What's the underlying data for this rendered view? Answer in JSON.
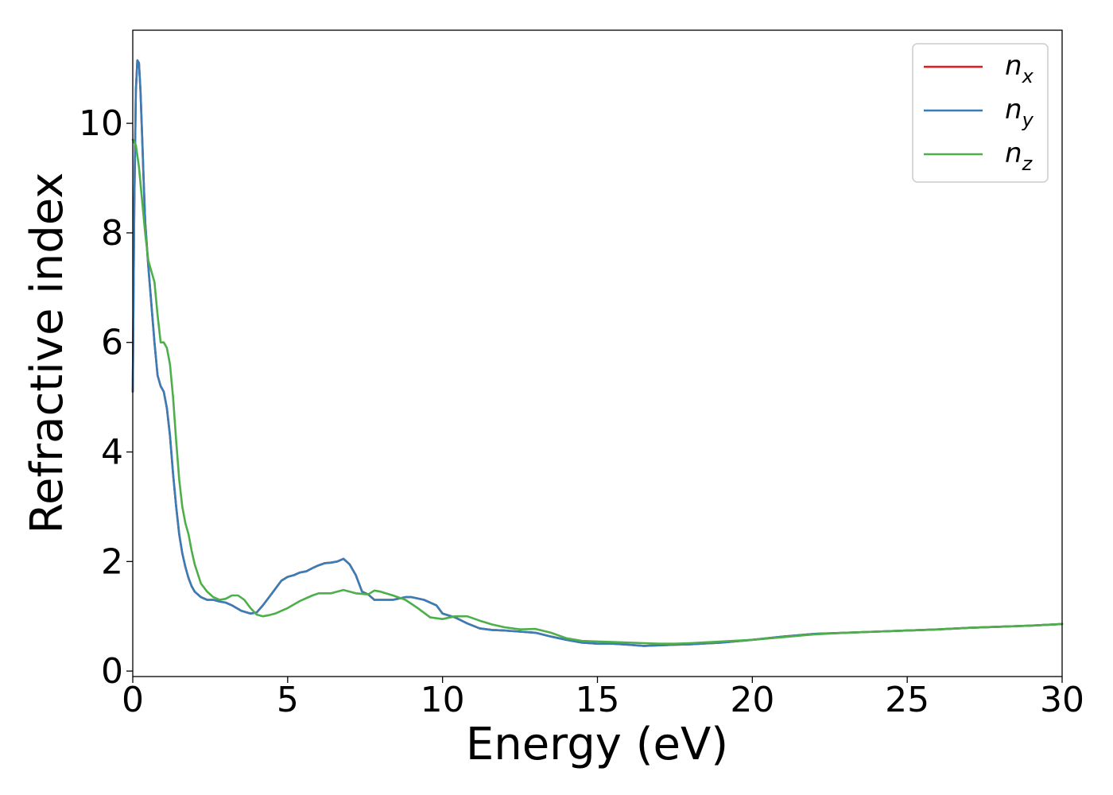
{
  "chart_data": {
    "type": "line",
    "xlabel": "Energy (eV)",
    "ylabel": "Refractive index",
    "xlim": [
      0,
      30
    ],
    "ylim": [
      -0.1,
      11.7
    ],
    "xticks": [
      "0",
      "5",
      "10",
      "15",
      "20",
      "25",
      "30"
    ],
    "yticks": [
      "0",
      "2",
      "4",
      "6",
      "8",
      "10"
    ],
    "grid": false,
    "legend_position": "top-right",
    "series": [
      {
        "name": "n_x",
        "label_main": "n",
        "label_sub": "x",
        "color": "#e41a1c",
        "x": [
          0,
          0.05,
          0.1,
          0.15,
          0.2,
          0.25,
          0.3,
          0.35,
          0.4,
          0.5,
          0.6,
          0.7,
          0.8,
          0.9,
          1.0,
          1.1,
          1.2,
          1.3,
          1.4,
          1.5,
          1.6,
          1.7,
          1.8,
          1.9,
          2.0,
          2.2,
          2.4,
          2.6,
          2.8,
          3.0,
          3.2,
          3.5,
          3.8,
          4.0,
          4.2,
          4.4,
          4.6,
          4.8,
          5.0,
          5.2,
          5.4,
          5.6,
          5.8,
          6.0,
          6.2,
          6.4,
          6.6,
          6.8,
          7.0,
          7.2,
          7.4,
          7.6,
          7.8,
          8.0,
          8.4,
          8.8,
          9.0,
          9.4,
          9.8,
          10.0,
          10.4,
          10.8,
          11.2,
          11.6,
          12.0,
          12.5,
          13.0,
          13.5,
          14.0,
          14.5,
          15.0,
          15.5,
          16.0,
          16.5,
          17.0,
          17.5,
          18.0,
          19.0,
          20.0,
          21.0,
          22.0,
          23.0,
          24.0,
          25.0,
          26.0,
          27.0,
          28.0,
          29.0,
          30.0
        ],
        "y": [
          5.1,
          8.5,
          10.6,
          11.15,
          11.1,
          10.6,
          9.8,
          9.0,
          8.2,
          7.4,
          6.7,
          6.0,
          5.4,
          5.2,
          5.1,
          4.8,
          4.3,
          3.6,
          3.0,
          2.5,
          2.15,
          1.9,
          1.7,
          1.55,
          1.45,
          1.35,
          1.3,
          1.3,
          1.27,
          1.25,
          1.2,
          1.1,
          1.05,
          1.07,
          1.2,
          1.35,
          1.5,
          1.65,
          1.72,
          1.75,
          1.8,
          1.82,
          1.88,
          1.93,
          1.97,
          1.98,
          2.0,
          2.05,
          1.95,
          1.75,
          1.45,
          1.4,
          1.3,
          1.3,
          1.3,
          1.35,
          1.35,
          1.3,
          1.2,
          1.05,
          0.98,
          0.87,
          0.78,
          0.75,
          0.74,
          0.72,
          0.7,
          0.63,
          0.57,
          0.52,
          0.5,
          0.5,
          0.48,
          0.46,
          0.47,
          0.48,
          0.49,
          0.52,
          0.57,
          0.63,
          0.68,
          0.7,
          0.72,
          0.74,
          0.76,
          0.79,
          0.81,
          0.83,
          0.86
        ]
      },
      {
        "name": "n_y",
        "label_main": "n",
        "label_sub": "y",
        "color": "#377eb8",
        "x": [
          0,
          0.05,
          0.1,
          0.15,
          0.2,
          0.25,
          0.3,
          0.35,
          0.4,
          0.5,
          0.6,
          0.7,
          0.8,
          0.9,
          1.0,
          1.1,
          1.2,
          1.3,
          1.4,
          1.5,
          1.6,
          1.7,
          1.8,
          1.9,
          2.0,
          2.2,
          2.4,
          2.6,
          2.8,
          3.0,
          3.2,
          3.5,
          3.8,
          4.0,
          4.2,
          4.4,
          4.6,
          4.8,
          5.0,
          5.2,
          5.4,
          5.6,
          5.8,
          6.0,
          6.2,
          6.4,
          6.6,
          6.8,
          7.0,
          7.2,
          7.4,
          7.6,
          7.8,
          8.0,
          8.4,
          8.8,
          9.0,
          9.4,
          9.8,
          10.0,
          10.4,
          10.8,
          11.2,
          11.6,
          12.0,
          12.5,
          13.0,
          13.5,
          14.0,
          14.5,
          15.0,
          15.5,
          16.0,
          16.5,
          17.0,
          17.5,
          18.0,
          19.0,
          20.0,
          21.0,
          22.0,
          23.0,
          24.0,
          25.0,
          26.0,
          27.0,
          28.0,
          29.0,
          30.0
        ],
        "y": [
          5.1,
          8.5,
          10.6,
          11.15,
          11.1,
          10.6,
          9.8,
          9.0,
          8.2,
          7.4,
          6.7,
          6.0,
          5.4,
          5.2,
          5.1,
          4.8,
          4.3,
          3.6,
          3.0,
          2.5,
          2.15,
          1.9,
          1.7,
          1.55,
          1.45,
          1.35,
          1.3,
          1.3,
          1.27,
          1.25,
          1.2,
          1.1,
          1.05,
          1.07,
          1.2,
          1.35,
          1.5,
          1.65,
          1.72,
          1.75,
          1.8,
          1.82,
          1.88,
          1.93,
          1.97,
          1.98,
          2.0,
          2.05,
          1.95,
          1.75,
          1.45,
          1.4,
          1.3,
          1.3,
          1.3,
          1.35,
          1.35,
          1.3,
          1.2,
          1.05,
          0.98,
          0.87,
          0.78,
          0.75,
          0.74,
          0.72,
          0.7,
          0.63,
          0.57,
          0.52,
          0.5,
          0.5,
          0.48,
          0.46,
          0.47,
          0.48,
          0.49,
          0.52,
          0.57,
          0.63,
          0.68,
          0.7,
          0.72,
          0.74,
          0.76,
          0.79,
          0.81,
          0.83,
          0.86
        ]
      },
      {
        "name": "n_z",
        "label_main": "n",
        "label_sub": "z",
        "color": "#4daf4a",
        "x": [
          0,
          0.1,
          0.2,
          0.3,
          0.4,
          0.5,
          0.6,
          0.7,
          0.8,
          0.9,
          1.0,
          1.1,
          1.2,
          1.3,
          1.4,
          1.5,
          1.6,
          1.7,
          1.8,
          1.9,
          2.0,
          2.2,
          2.4,
          2.6,
          2.8,
          3.0,
          3.2,
          3.4,
          3.6,
          3.8,
          4.0,
          4.2,
          4.4,
          4.6,
          4.8,
          5.0,
          5.4,
          5.8,
          6.0,
          6.4,
          6.8,
          7.2,
          7.6,
          7.8,
          8.0,
          8.4,
          8.8,
          9.2,
          9.6,
          10.0,
          10.4,
          10.8,
          11.2,
          11.6,
          12.0,
          12.5,
          13.0,
          13.5,
          14.0,
          14.5,
          15.0,
          15.5,
          16.0,
          16.5,
          17.0,
          17.5,
          18.0,
          19.0,
          20.0,
          21.0,
          22.0,
          23.0,
          24.0,
          25.0,
          26.0,
          27.0,
          28.0,
          29.0,
          30.0
        ],
        "y": [
          9.7,
          9.6,
          9.2,
          8.6,
          8.0,
          7.5,
          7.3,
          7.1,
          6.5,
          6.0,
          6.0,
          5.9,
          5.6,
          5.0,
          4.2,
          3.5,
          3.0,
          2.7,
          2.5,
          2.2,
          1.95,
          1.6,
          1.45,
          1.35,
          1.3,
          1.32,
          1.38,
          1.38,
          1.3,
          1.15,
          1.03,
          1.0,
          1.02,
          1.05,
          1.1,
          1.15,
          1.28,
          1.38,
          1.42,
          1.42,
          1.48,
          1.42,
          1.4,
          1.47,
          1.45,
          1.38,
          1.3,
          1.15,
          0.98,
          0.95,
          1.0,
          1.0,
          0.92,
          0.85,
          0.8,
          0.76,
          0.77,
          0.7,
          0.6,
          0.55,
          0.54,
          0.53,
          0.52,
          0.51,
          0.5,
          0.5,
          0.51,
          0.54,
          0.57,
          0.62,
          0.67,
          0.7,
          0.72,
          0.74,
          0.76,
          0.79,
          0.81,
          0.83,
          0.86
        ]
      }
    ]
  }
}
